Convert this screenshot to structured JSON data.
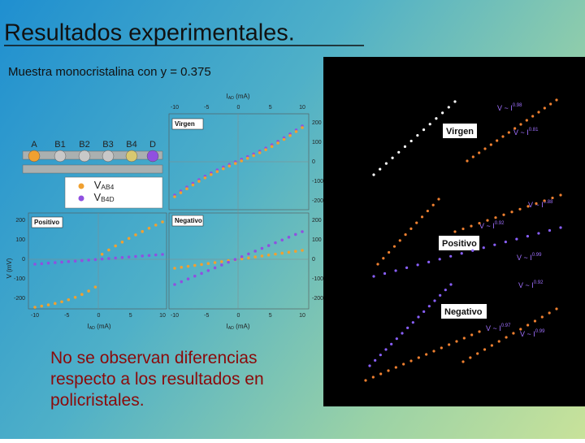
{
  "title": "Resultados experimentales.",
  "subtitle": "Muestra monocristalina con y = 0.375",
  "conclusion": "No se observan diferencias respecto a los resultados en policristales.",
  "figure": {
    "contacts": [
      "A",
      "B1",
      "B2",
      "B3",
      "B4",
      "D"
    ],
    "legend": [
      {
        "main": "V",
        "sub": "AB4"
      },
      {
        "main": "V",
        "sub": "B4D"
      }
    ],
    "panels": [
      "Virgen",
      "Positivo",
      "Negativo"
    ],
    "x_label": {
      "main": "I",
      "sub": "AD",
      "unit": " (mA)"
    },
    "y_label": "V (mV)",
    "x_ticks": [
      -10,
      -5,
      0,
      5,
      10
    ],
    "y_ticks": [
      200,
      100,
      0,
      -100,
      -200
    ]
  },
  "photo": {
    "panels": [
      "Virgen",
      "Positivo",
      "Negativo"
    ],
    "power_laws": [
      {
        "base": "V ~ I",
        "exp": "0.98"
      },
      {
        "base": "V ~ I",
        "exp": "0.81"
      },
      {
        "base": "V ~ I",
        "exp": "0.88"
      },
      {
        "base": "V ~ I",
        "exp": "0.92"
      },
      {
        "base": "V ~ I",
        "exp": "0.99"
      },
      {
        "base": "V ~ I",
        "exp": "0.92"
      },
      {
        "base": "V ~ I",
        "exp": "0.97"
      },
      {
        "base": "V ~ I",
        "exp": "0.99"
      }
    ]
  }
}
